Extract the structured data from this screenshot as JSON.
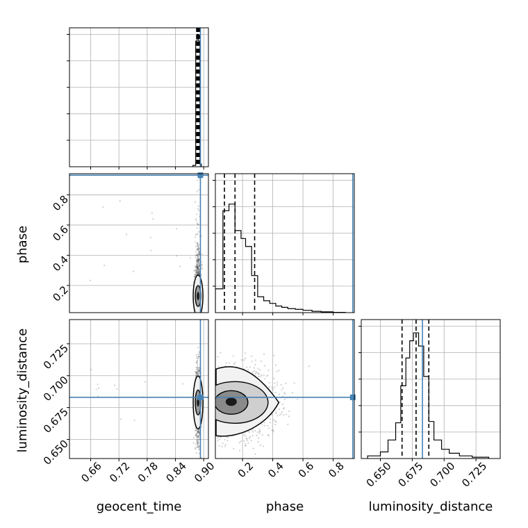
{
  "chart_data": {
    "type": "corner",
    "parameters": [
      "geocent_time",
      "phase",
      "luminosity_distance"
    ],
    "truth_color": "#4682b4",
    "truths": {
      "geocent_time": 0.893,
      "phase": 0.93,
      "luminosity_distance": 0.683
    },
    "panels": [
      {
        "id": "geocent_time-hist",
        "type": "histogram",
        "param": "geocent_time",
        "xlim": [
          0.615,
          0.91
        ],
        "xticks": [
          0.66,
          0.72,
          0.78,
          0.84,
          0.9
        ],
        "grid": true,
        "bins": [
          [
            0.877,
            0.883,
            0.01
          ],
          [
            0.883,
            0.886,
            0.95
          ],
          [
            0.886,
            0.889,
            1.0
          ],
          [
            0.889,
            0.892,
            0.95
          ],
          [
            0.892,
            0.895,
            0.02
          ]
        ],
        "quantiles": [
          0.885,
          0.887,
          0.889,
          0.8905,
          0.892
        ]
      },
      {
        "id": "phase-vs-geocent_time",
        "type": "scatter_contour",
        "x": "geocent_time",
        "y": "phase",
        "xlim": [
          0.615,
          0.91
        ],
        "ylim": [
          0.02,
          0.94
        ],
        "yticks": [
          0.2,
          0.4,
          0.6,
          0.8
        ],
        "ytick_labels": [
          "0.2",
          "0.4",
          "0.6",
          "0.8"
        ],
        "ylabel": "phase",
        "grid": true
      },
      {
        "id": "phase-hist",
        "type": "histogram",
        "param": "phase",
        "xlim": [
          0.02,
          0.94
        ],
        "xticks": [
          0.2,
          0.4,
          0.6,
          0.8
        ],
        "grid": true,
        "bins": [
          [
            0.02,
            0.07,
            0.18
          ],
          [
            0.07,
            0.11,
            0.77
          ],
          [
            0.11,
            0.15,
            0.82
          ],
          [
            0.15,
            0.19,
            0.62
          ],
          [
            0.19,
            0.22,
            0.56
          ],
          [
            0.22,
            0.26,
            0.5
          ],
          [
            0.26,
            0.3,
            0.28
          ],
          [
            0.3,
            0.34,
            0.12
          ],
          [
            0.34,
            0.38,
            0.09
          ],
          [
            0.38,
            0.42,
            0.07
          ],
          [
            0.42,
            0.46,
            0.05
          ],
          [
            0.46,
            0.5,
            0.04
          ],
          [
            0.5,
            0.55,
            0.03
          ],
          [
            0.55,
            0.6,
            0.025
          ],
          [
            0.6,
            0.66,
            0.018
          ],
          [
            0.66,
            0.72,
            0.01
          ],
          [
            0.72,
            0.8,
            0.006
          ],
          [
            0.8,
            0.88,
            0.002
          ]
        ],
        "quantiles": [
          0.08,
          0.15,
          0.28
        ]
      },
      {
        "id": "luminosity_distance-vs-geocent_time",
        "type": "scatter_contour",
        "x": "geocent_time",
        "y": "luminosity_distance",
        "xlim": [
          0.615,
          0.91
        ],
        "ylim": [
          0.635,
          0.744
        ],
        "xticks": [
          0.66,
          0.72,
          0.78,
          0.84,
          0.9
        ],
        "xtick_labels": [
          "0.66",
          "0.72",
          "0.78",
          "0.84",
          "0.90"
        ],
        "yticks": [
          0.65,
          0.675,
          0.7,
          0.725
        ],
        "ytick_labels": [
          "0.650",
          "0.675",
          "0.700",
          "0.725"
        ],
        "xlabel": "geocent_time",
        "ylabel": "luminosity_distance",
        "grid": true
      },
      {
        "id": "luminosity_distance-vs-phase",
        "type": "scatter_contour",
        "x": "phase",
        "y": "luminosity_distance",
        "xlim": [
          0.02,
          0.94
        ],
        "ylim": [
          0.635,
          0.744
        ],
        "xticks": [
          0.2,
          0.4,
          0.6,
          0.8
        ],
        "xtick_labels": [
          "0.2",
          "0.4",
          "0.6",
          "0.8"
        ],
        "xlabel": "phase",
        "grid": true
      },
      {
        "id": "luminosity_distance-hist",
        "type": "histogram",
        "param": "luminosity_distance",
        "xlim": [
          0.635,
          0.744
        ],
        "xticks": [
          0.65,
          0.675,
          0.7,
          0.725
        ],
        "xtick_labels": [
          "0.650",
          "0.675",
          "0.700",
          "0.725"
        ],
        "xlabel": "luminosity_distance",
        "grid": true,
        "bins": [
          [
            0.64,
            0.65,
            0.02
          ],
          [
            0.65,
            0.656,
            0.05
          ],
          [
            0.656,
            0.662,
            0.14
          ],
          [
            0.662,
            0.666,
            0.27
          ],
          [
            0.666,
            0.67,
            0.55
          ],
          [
            0.67,
            0.673,
            0.76
          ],
          [
            0.673,
            0.676,
            0.89
          ],
          [
            0.676,
            0.68,
            0.95
          ],
          [
            0.68,
            0.684,
            0.85
          ],
          [
            0.684,
            0.688,
            0.62
          ],
          [
            0.688,
            0.692,
            0.28
          ],
          [
            0.692,
            0.698,
            0.14
          ],
          [
            0.698,
            0.704,
            0.07
          ],
          [
            0.704,
            0.712,
            0.04
          ],
          [
            0.712,
            0.722,
            0.02
          ],
          [
            0.722,
            0.735,
            0.01
          ]
        ],
        "quantiles": [
          0.667,
          0.678,
          0.688
        ]
      }
    ]
  }
}
